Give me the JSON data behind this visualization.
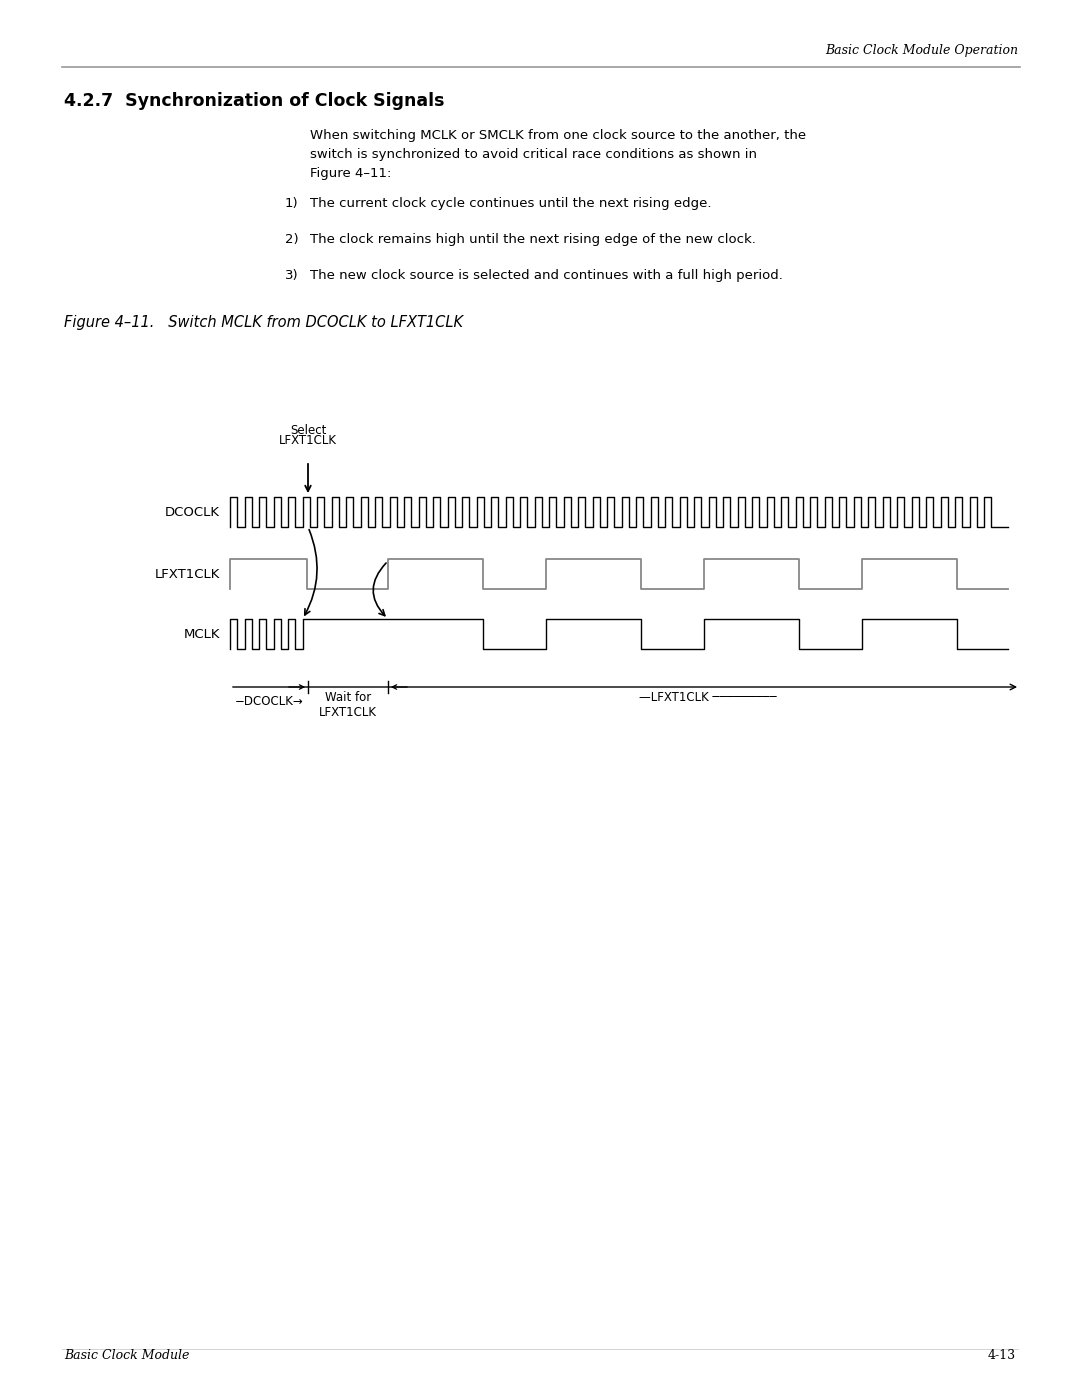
{
  "page_title_right": "Basic Clock Module Operation",
  "section_number": "4.2.7",
  "section_title": "Synchronization of Clock Signals",
  "body_line1": "When switching MCLK or SMCLK from one clock source to the another, the",
  "body_line2": "switch is synchronized to avoid critical race conditions as shown in",
  "body_line3": "Figure 4–11:",
  "list_items": [
    "The current clock cycle continues until the next rising edge.",
    "The clock remains high until the next rising edge of the new clock.",
    "The new clock source is selected and continues with a full high period."
  ],
  "figure_caption": "Figure 4–11.   Switch MCLK from DCOCLK to LFXT1CLK",
  "footer_left": "Basic Clock Module",
  "footer_right": "4-13",
  "bg_color": "#ffffff",
  "text_color": "#000000",
  "signal_labels": [
    "DCOCLK",
    "LFXT1CLK",
    "MCLK"
  ],
  "select_label_line1": "Select",
  "select_label_line2": "LFXT1CLK",
  "wait_label_line1": "Wait for",
  "wait_label_line2": "LFXT1CLK",
  "bottom_dcoclk": "−DCOCLK→",
  "bottom_lfxt1clk": "—LFXT1CLK ────────────"
}
